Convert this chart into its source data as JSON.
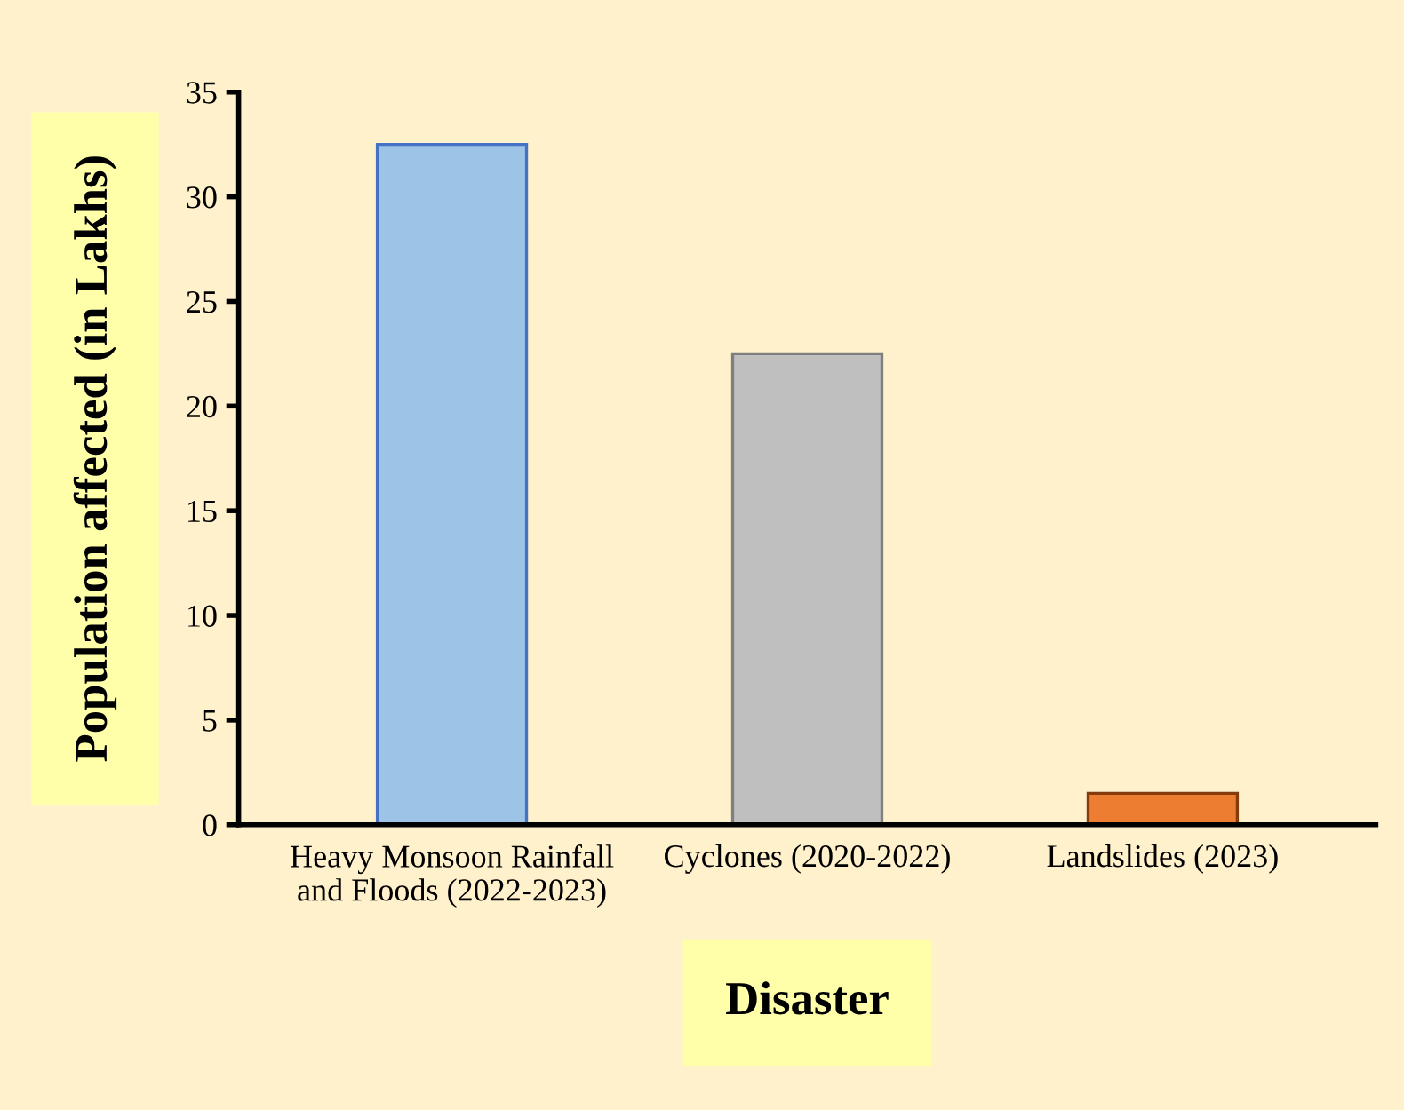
{
  "chart_data": {
    "type": "bar",
    "xlabel": "Disaster",
    "ylabel": "Population affected (in Lakhs)",
    "categories": [
      "Heavy Monsoon Rainfall\nand Floods (2022-2023)",
      "Cyclones (2020-2022)",
      "Landslides (2023)"
    ],
    "values": [
      32.5,
      22.5,
      1.5
    ],
    "colors": [
      "#9dc3e6",
      "#bfbfbf",
      "#ed7d31"
    ],
    "ylim": [
      0,
      35
    ],
    "yticks": [
      0,
      5,
      10,
      15,
      20,
      25,
      30,
      35
    ],
    "grid": false,
    "legend": false
  }
}
